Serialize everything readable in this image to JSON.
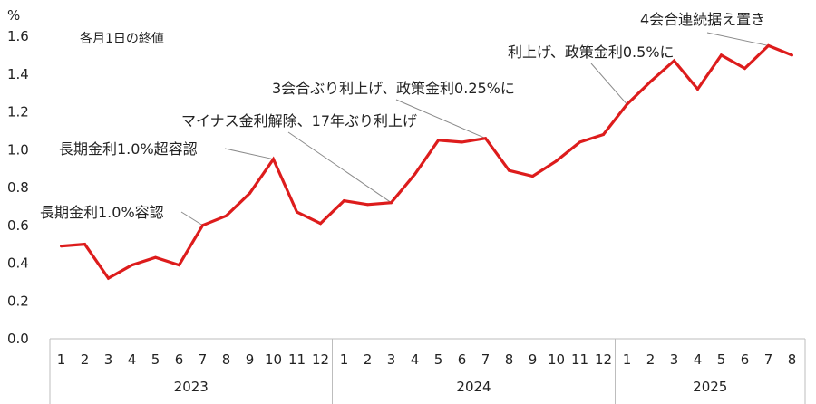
{
  "chart_data": {
    "type": "line",
    "unit": "%",
    "note": "各月1日の終値",
    "ylim": [
      0,
      1.6
    ],
    "yticks": [
      "0.0",
      "0.2",
      "0.4",
      "0.6",
      "0.8",
      "1.0",
      "1.2",
      "1.4",
      "1.6"
    ],
    "years": [
      {
        "label": "2023",
        "months": [
          "1",
          "2",
          "3",
          "4",
          "5",
          "6",
          "7",
          "8",
          "9",
          "10",
          "11",
          "12"
        ]
      },
      {
        "label": "2024",
        "months": [
          "1",
          "2",
          "3",
          "4",
          "5",
          "6",
          "7",
          "8",
          "9",
          "10",
          "11",
          "12"
        ]
      },
      {
        "label": "2025",
        "months": [
          "1",
          "2",
          "3",
          "4",
          "5",
          "6",
          "7",
          "8"
        ]
      }
    ],
    "x": [
      "2023-01",
      "2023-02",
      "2023-03",
      "2023-04",
      "2023-05",
      "2023-06",
      "2023-07",
      "2023-08",
      "2023-09",
      "2023-10",
      "2023-11",
      "2023-12",
      "2024-01",
      "2024-02",
      "2024-03",
      "2024-04",
      "2024-05",
      "2024-06",
      "2024-07",
      "2024-08",
      "2024-09",
      "2024-10",
      "2024-11",
      "2024-12",
      "2025-01",
      "2025-02",
      "2025-03",
      "2025-04",
      "2025-05",
      "2025-06",
      "2025-07",
      "2025-08"
    ],
    "values": [
      0.49,
      0.5,
      0.32,
      0.39,
      0.43,
      0.39,
      0.6,
      0.65,
      0.77,
      0.95,
      0.67,
      0.61,
      0.73,
      0.71,
      0.72,
      0.87,
      1.05,
      1.04,
      1.06,
      0.89,
      0.86,
      0.94,
      1.04,
      1.08,
      1.24,
      1.36,
      1.47,
      1.32,
      1.5,
      1.43,
      1.55,
      1.5
    ],
    "grid": false,
    "line_color": "#dd1c1c",
    "annotations": [
      {
        "text": "長期金利1.0%容認",
        "x": "2023-07"
      },
      {
        "text": "長期金利1.0%超容認",
        "x": "2023-10"
      },
      {
        "text": "マイナス金利解除、17年ぶり利上げ",
        "x": "2024-03"
      },
      {
        "text": "3会合ぶり利上げ、政策金利0.25%に",
        "x": "2024-07"
      },
      {
        "text": "利上げ、政策金利0.5%に",
        "x": "2025-01"
      },
      {
        "text": "4会合連続据え置き",
        "x": "2025-07"
      }
    ]
  }
}
